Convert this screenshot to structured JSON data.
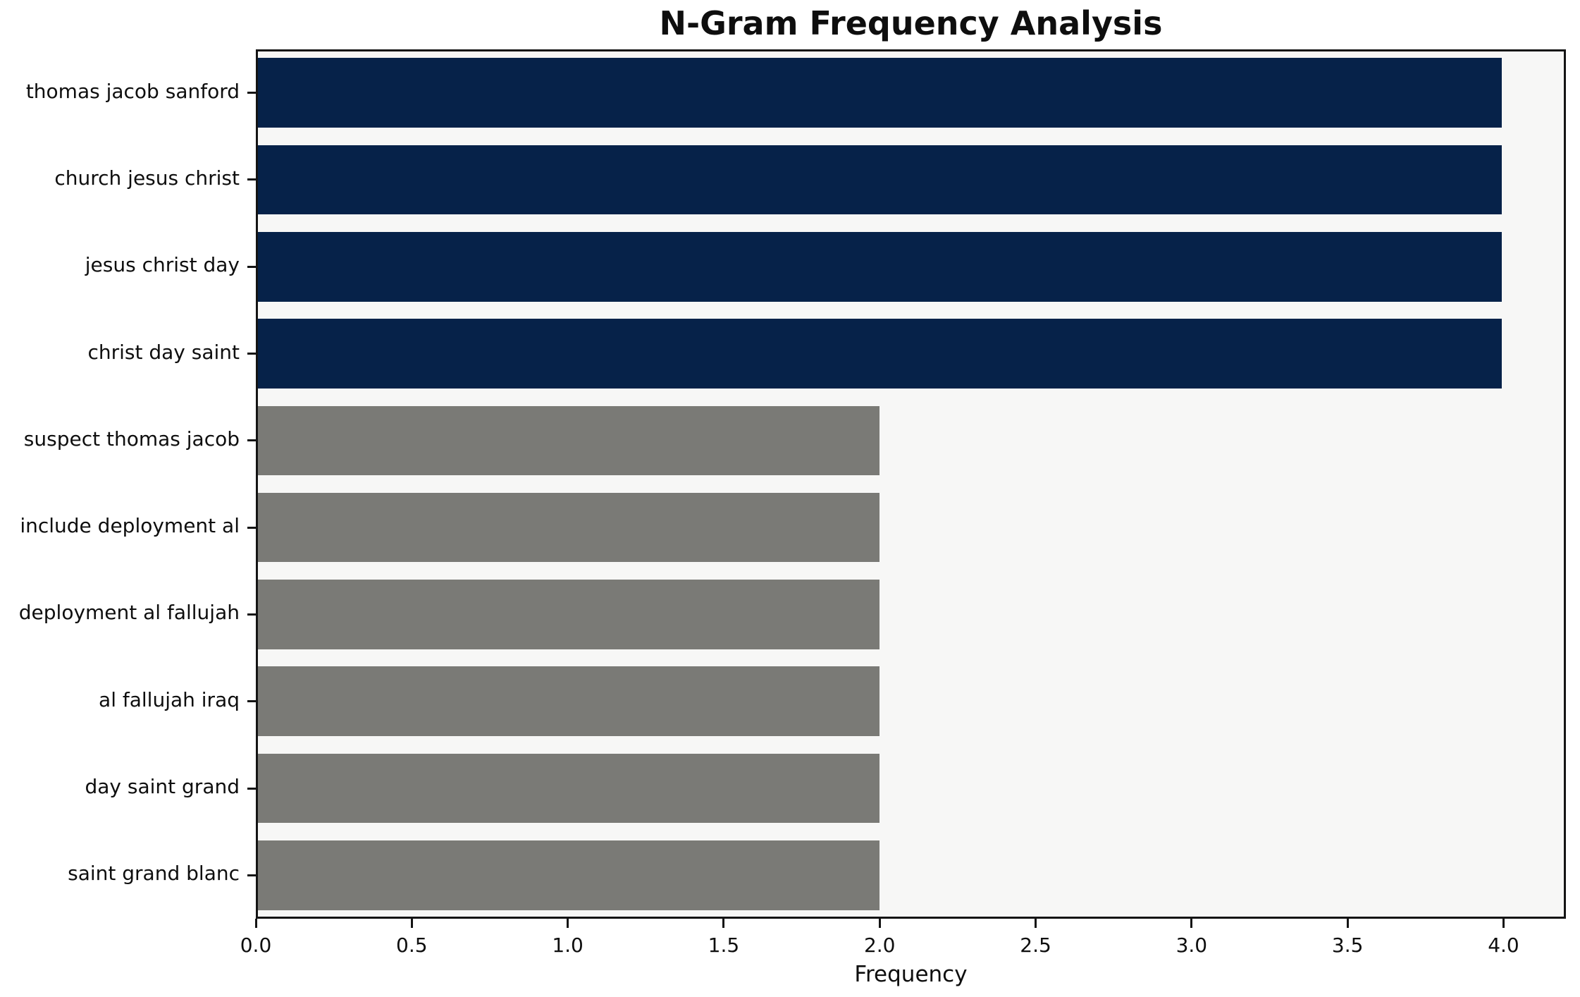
{
  "chart_data": {
    "type": "bar",
    "orientation": "horizontal",
    "title": "N-Gram Frequency Analysis",
    "xlabel": "Frequency",
    "ylabel": "",
    "categories": [
      "thomas jacob sanford",
      "church jesus christ",
      "jesus christ day",
      "christ day saint",
      "suspect thomas jacob",
      "include deployment al",
      "deployment al fallujah",
      "al fallujah iraq",
      "day saint grand",
      "saint grand blanc"
    ],
    "values": [
      4,
      4,
      4,
      4,
      2,
      2,
      2,
      2,
      2,
      2
    ],
    "bar_colors": [
      "#062249",
      "#062249",
      "#062249",
      "#062249",
      "#7a7a76",
      "#7a7a76",
      "#7a7a76",
      "#7a7a76",
      "#7a7a76",
      "#7a7a76"
    ],
    "xlim": [
      0,
      4.2
    ],
    "xtick_values": [
      0,
      0.5,
      1,
      1.5,
      2,
      2.5,
      3,
      3.5,
      4
    ],
    "xtick_labels": [
      "0.0",
      "0.5",
      "1.0",
      "1.5",
      "2.0",
      "2.5",
      "3.0",
      "3.5",
      "4.0"
    ],
    "grid": false,
    "legend": "none",
    "colors": {
      "navy_bar": "#062249",
      "gray_bar": "#7a7a76",
      "plot_background": "#f7f7f6",
      "figure_background": "#ffffff",
      "spine": "#141414",
      "text": "#0e0e0e"
    }
  }
}
